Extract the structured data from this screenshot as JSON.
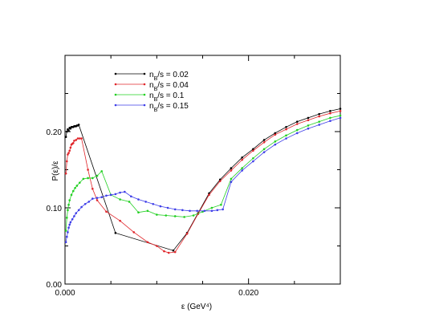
{
  "chart_data": {
    "type": "line",
    "title": "",
    "xlabel": "ε (GeV⁴)",
    "ylabel": "P(ε)/ε",
    "xlim": [
      0,
      0.03
    ],
    "ylim": [
      0,
      0.3
    ],
    "x_ticks": [
      0.0,
      0.02
    ],
    "x_tick_labels": [
      "0.000",
      "0.020"
    ],
    "y_ticks": [
      0.0,
      0.1,
      0.2
    ],
    "y_tick_labels": [
      "0.00",
      "0.10",
      "0.20"
    ],
    "grid": false,
    "legend_position": "top-left",
    "series": [
      {
        "name": "nB/s = 0.02",
        "legend_main": "n",
        "legend_sub": "B",
        "legend_rest": "/s = 0.02",
        "color": "#000000",
        "points": [
          [
            0.0001,
            0.193
          ],
          [
            0.0002,
            0.2
          ],
          [
            0.0003,
            0.203
          ],
          [
            0.0004,
            0.201
          ],
          [
            0.0005,
            0.205
          ],
          [
            0.0006,
            0.204
          ],
          [
            0.0007,
            0.206
          ],
          [
            0.0008,
            0.206
          ],
          [
            0.0009,
            0.206
          ],
          [
            0.001,
            0.207
          ],
          [
            0.0011,
            0.207
          ],
          [
            0.0012,
            0.207
          ],
          [
            0.0013,
            0.208
          ],
          [
            0.0014,
            0.208
          ],
          [
            0.0015,
            0.209
          ],
          [
            0.0055,
            0.067
          ],
          [
            0.0118,
            0.044
          ],
          [
            0.0133,
            0.067
          ],
          [
            0.0145,
            0.093
          ],
          [
            0.0157,
            0.119
          ],
          [
            0.0169,
            0.137
          ],
          [
            0.0181,
            0.152
          ],
          [
            0.0193,
            0.166
          ],
          [
            0.0205,
            0.177
          ],
          [
            0.0217,
            0.189
          ],
          [
            0.0229,
            0.198
          ],
          [
            0.0241,
            0.206
          ],
          [
            0.0253,
            0.213
          ],
          [
            0.0265,
            0.218
          ],
          [
            0.0277,
            0.223
          ],
          [
            0.0289,
            0.227
          ],
          [
            0.03,
            0.23
          ]
        ]
      },
      {
        "name": "nB/s = 0.04",
        "legend_main": "n",
        "legend_sub": "B",
        "legend_rest": "/s = 0.04",
        "color": "#e0262b",
        "points": [
          [
            0.0001,
            0.145
          ],
          [
            0.0002,
            0.161
          ],
          [
            0.0003,
            0.17
          ],
          [
            0.0004,
            0.172
          ],
          [
            0.0005,
            0.175
          ],
          [
            0.0006,
            0.179
          ],
          [
            0.0007,
            0.183
          ],
          [
            0.0008,
            0.184
          ],
          [
            0.0009,
            0.185
          ],
          [
            0.001,
            0.188
          ],
          [
            0.0012,
            0.189
          ],
          [
            0.0014,
            0.191
          ],
          [
            0.0016,
            0.191
          ],
          [
            0.0018,
            0.191
          ],
          [
            0.0025,
            0.15
          ],
          [
            0.003,
            0.125
          ],
          [
            0.0035,
            0.11
          ],
          [
            0.0045,
            0.095
          ],
          [
            0.006,
            0.083
          ],
          [
            0.0075,
            0.068
          ],
          [
            0.009,
            0.055
          ],
          [
            0.01,
            0.05
          ],
          [
            0.0108,
            0.043
          ],
          [
            0.0113,
            0.041
          ],
          [
            0.012,
            0.042
          ],
          [
            0.0133,
            0.066
          ],
          [
            0.0145,
            0.092
          ],
          [
            0.0157,
            0.117
          ],
          [
            0.0169,
            0.135
          ],
          [
            0.0181,
            0.149
          ],
          [
            0.0193,
            0.163
          ],
          [
            0.0205,
            0.175
          ],
          [
            0.0217,
            0.186
          ],
          [
            0.0229,
            0.196
          ],
          [
            0.0241,
            0.203
          ],
          [
            0.0253,
            0.21
          ],
          [
            0.0265,
            0.215
          ],
          [
            0.0277,
            0.22
          ],
          [
            0.0289,
            0.224
          ],
          [
            0.03,
            0.227
          ]
        ]
      },
      {
        "name": "nB/s = 0.1",
        "legend_main": "n",
        "legend_sub": "B",
        "legend_rest": "/s = 0.1",
        "color": "#22d022",
        "points": [
          [
            0.0001,
            0.07
          ],
          [
            0.0002,
            0.087
          ],
          [
            0.0003,
            0.097
          ],
          [
            0.0004,
            0.104
          ],
          [
            0.0005,
            0.11
          ],
          [
            0.0007,
            0.117
          ],
          [
            0.0009,
            0.122
          ],
          [
            0.0011,
            0.126
          ],
          [
            0.0013,
            0.129
          ],
          [
            0.0016,
            0.133
          ],
          [
            0.002,
            0.138
          ],
          [
            0.0025,
            0.139
          ],
          [
            0.003,
            0.139
          ],
          [
            0.0035,
            0.142
          ],
          [
            0.004,
            0.148
          ],
          [
            0.005,
            0.117
          ],
          [
            0.006,
            0.111
          ],
          [
            0.007,
            0.108
          ],
          [
            0.008,
            0.094
          ],
          [
            0.009,
            0.096
          ],
          [
            0.01,
            0.091
          ],
          [
            0.011,
            0.09
          ],
          [
            0.012,
            0.089
          ],
          [
            0.013,
            0.088
          ],
          [
            0.014,
            0.09
          ],
          [
            0.015,
            0.095
          ],
          [
            0.016,
            0.1
          ],
          [
            0.017,
            0.104
          ],
          [
            0.0181,
            0.138
          ],
          [
            0.0193,
            0.152
          ],
          [
            0.0205,
            0.165
          ],
          [
            0.0217,
            0.177
          ],
          [
            0.0229,
            0.187
          ],
          [
            0.0241,
            0.195
          ],
          [
            0.0253,
            0.202
          ],
          [
            0.0265,
            0.208
          ],
          [
            0.0277,
            0.213
          ],
          [
            0.0289,
            0.218
          ],
          [
            0.03,
            0.221
          ]
        ]
      },
      {
        "name": "nB/s = 0.15",
        "legend_main": "n",
        "legend_sub": "B",
        "legend_rest": "/s = 0.15",
        "color": "#3e3ee8",
        "points": [
          [
            0.0001,
            0.055
          ],
          [
            0.0002,
            0.062
          ],
          [
            0.0003,
            0.068
          ],
          [
            0.0004,
            0.074
          ],
          [
            0.0005,
            0.078
          ],
          [
            0.0006,
            0.081
          ],
          [
            0.0008,
            0.085
          ],
          [
            0.001,
            0.089
          ],
          [
            0.0012,
            0.093
          ],
          [
            0.0015,
            0.097
          ],
          [
            0.0018,
            0.101
          ],
          [
            0.0022,
            0.105
          ],
          [
            0.0026,
            0.108
          ],
          [
            0.003,
            0.112
          ],
          [
            0.0035,
            0.113
          ],
          [
            0.004,
            0.114
          ],
          [
            0.0045,
            0.116
          ],
          [
            0.005,
            0.117
          ],
          [
            0.0055,
            0.118
          ],
          [
            0.006,
            0.12
          ],
          [
            0.0065,
            0.121
          ],
          [
            0.0072,
            0.115
          ],
          [
            0.008,
            0.111
          ],
          [
            0.0088,
            0.108
          ],
          [
            0.0096,
            0.105
          ],
          [
            0.0104,
            0.102
          ],
          [
            0.0112,
            0.1
          ],
          [
            0.012,
            0.098
          ],
          [
            0.0128,
            0.097
          ],
          [
            0.0136,
            0.096
          ],
          [
            0.0144,
            0.096
          ],
          [
            0.0152,
            0.096
          ],
          [
            0.016,
            0.096
          ],
          [
            0.0166,
            0.097
          ],
          [
            0.0172,
            0.098
          ],
          [
            0.0181,
            0.134
          ],
          [
            0.0193,
            0.149
          ],
          [
            0.0205,
            0.161
          ],
          [
            0.0217,
            0.173
          ],
          [
            0.0229,
            0.183
          ],
          [
            0.0241,
            0.191
          ],
          [
            0.0253,
            0.198
          ],
          [
            0.0265,
            0.204
          ],
          [
            0.0277,
            0.209
          ],
          [
            0.0289,
            0.214
          ],
          [
            0.03,
            0.218
          ]
        ]
      }
    ]
  }
}
